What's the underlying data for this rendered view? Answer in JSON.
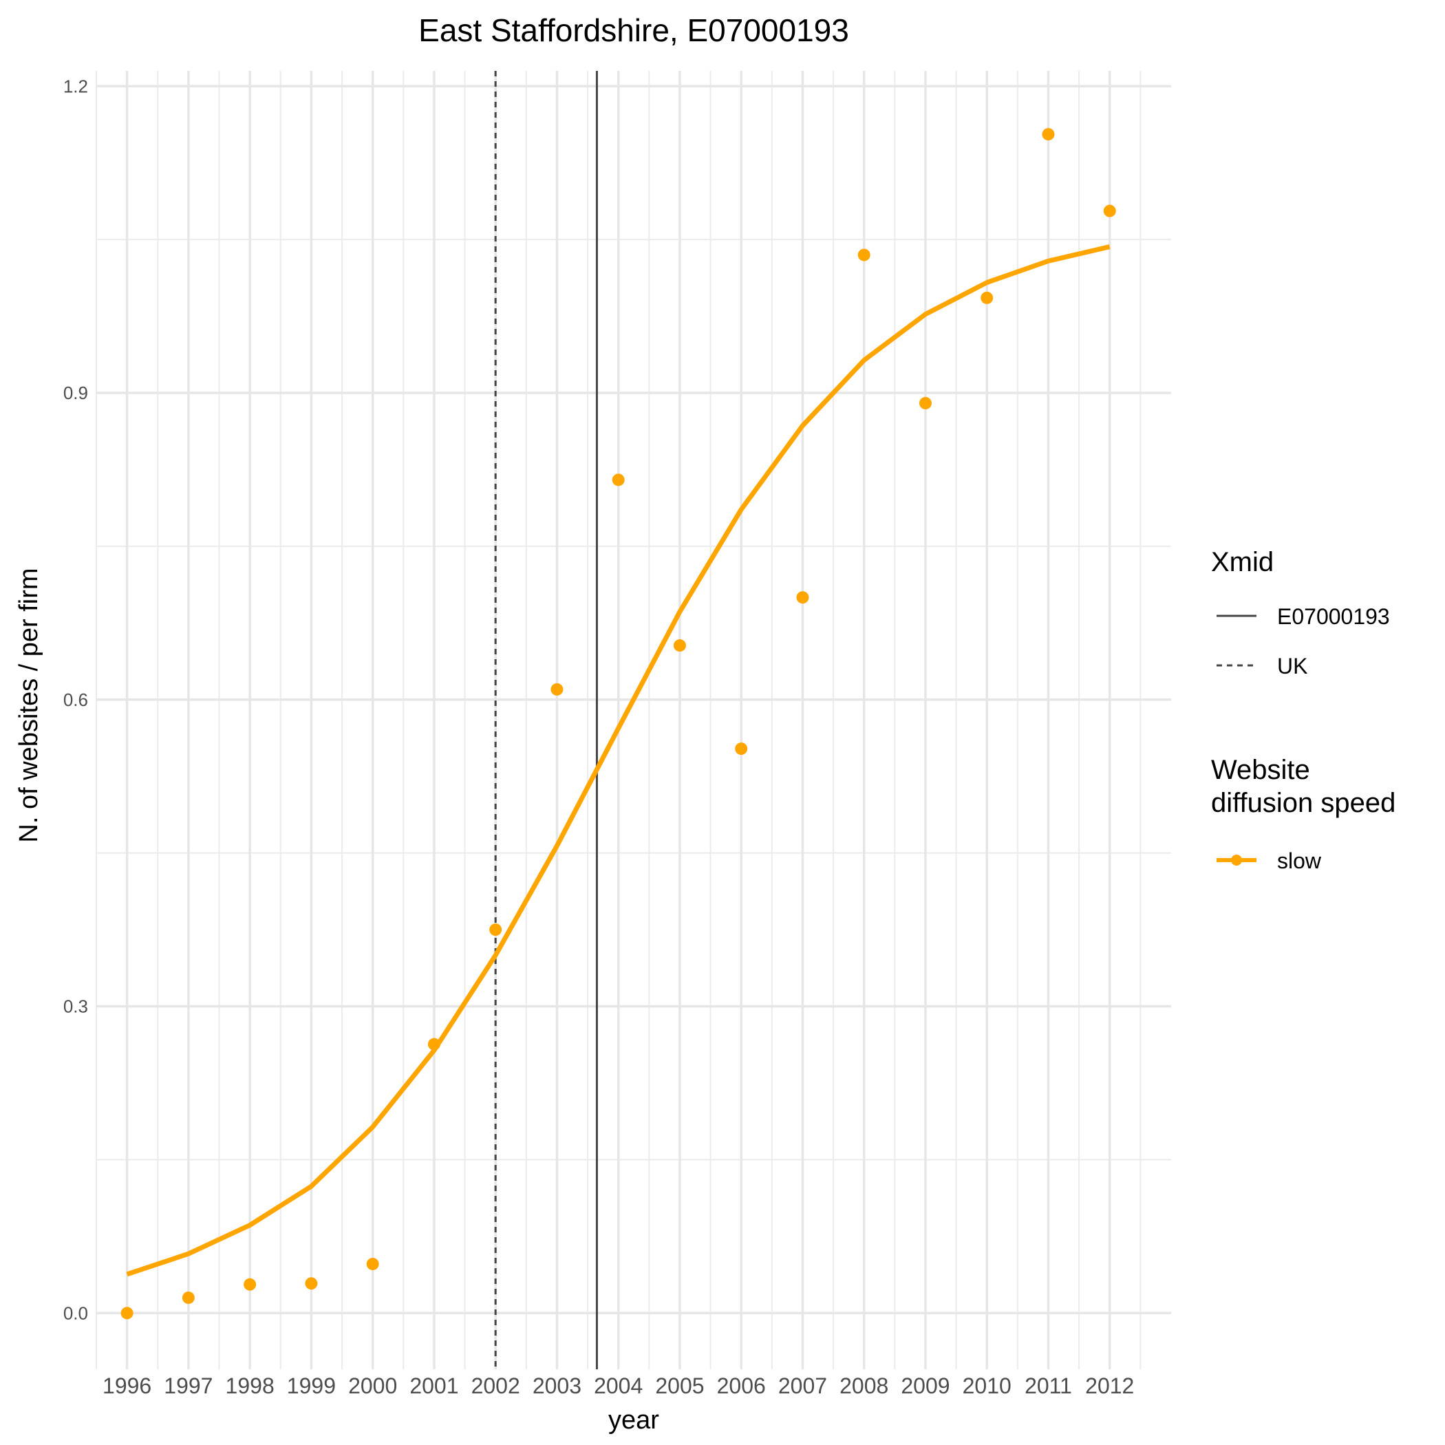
{
  "chart_data": {
    "type": "line",
    "title": "East Staffordshire, E07000193",
    "xlabel": "year",
    "ylabel": "N. of websites / per firm",
    "x_ticks": [
      "1996",
      "1997",
      "1998",
      "1999",
      "2000",
      "2001",
      "2002",
      "2003",
      "2004",
      "2005",
      "2006",
      "2007",
      "2008",
      "2009",
      "2010",
      "2011",
      "2012"
    ],
    "y_ticks": [
      "0.0",
      "0.3",
      "0.6",
      "0.9",
      "1.2"
    ],
    "xlim": [
      1995.5,
      2013.0
    ],
    "ylim": [
      -0.055,
      1.215
    ],
    "grid": true,
    "series": [
      {
        "name": "slow",
        "color": "#FFA500",
        "points": {
          "x": [
            1996,
            1997,
            1998,
            1999,
            2000,
            2001,
            2002,
            2003,
            2004,
            2005,
            2006,
            2007,
            2008,
            2009,
            2010,
            2011,
            2012
          ],
          "y": [
            0.0,
            0.015,
            0.028,
            0.029,
            0.048,
            0.263,
            0.375,
            0.61,
            0.815,
            0.653,
            0.552,
            0.7,
            1.035,
            0.89,
            0.993,
            1.153,
            1.078
          ]
        },
        "fit": {
          "x": [
            1996,
            1997,
            1998,
            1999,
            2000,
            2001,
            2002,
            2003,
            2004,
            2005,
            2006,
            2007,
            2008,
            2009,
            2010,
            2011,
            2012
          ],
          "y": [
            0.038,
            0.058,
            0.086,
            0.124,
            0.182,
            0.257,
            0.35,
            0.457,
            0.572,
            0.686,
            0.786,
            0.868,
            0.932,
            0.977,
            1.008,
            1.029,
            1.043
          ]
        }
      }
    ],
    "vlines": [
      {
        "name": "E07000193",
        "x": 2003.65,
        "style": "solid",
        "color": "#444444"
      },
      {
        "name": "UK",
        "x": 2002.0,
        "style": "dashed",
        "color": "#444444"
      }
    ],
    "legends": [
      {
        "title": "Xmid",
        "items": [
          {
            "label": "E07000193",
            "style": "solid"
          },
          {
            "label": "UK",
            "style": "dashed"
          }
        ]
      },
      {
        "title_lines": [
          "Website",
          "diffusion speed"
        ],
        "items": [
          {
            "label": "slow",
            "style": "point-line",
            "color": "#FFA500"
          }
        ]
      }
    ],
    "legend_position": "right"
  }
}
